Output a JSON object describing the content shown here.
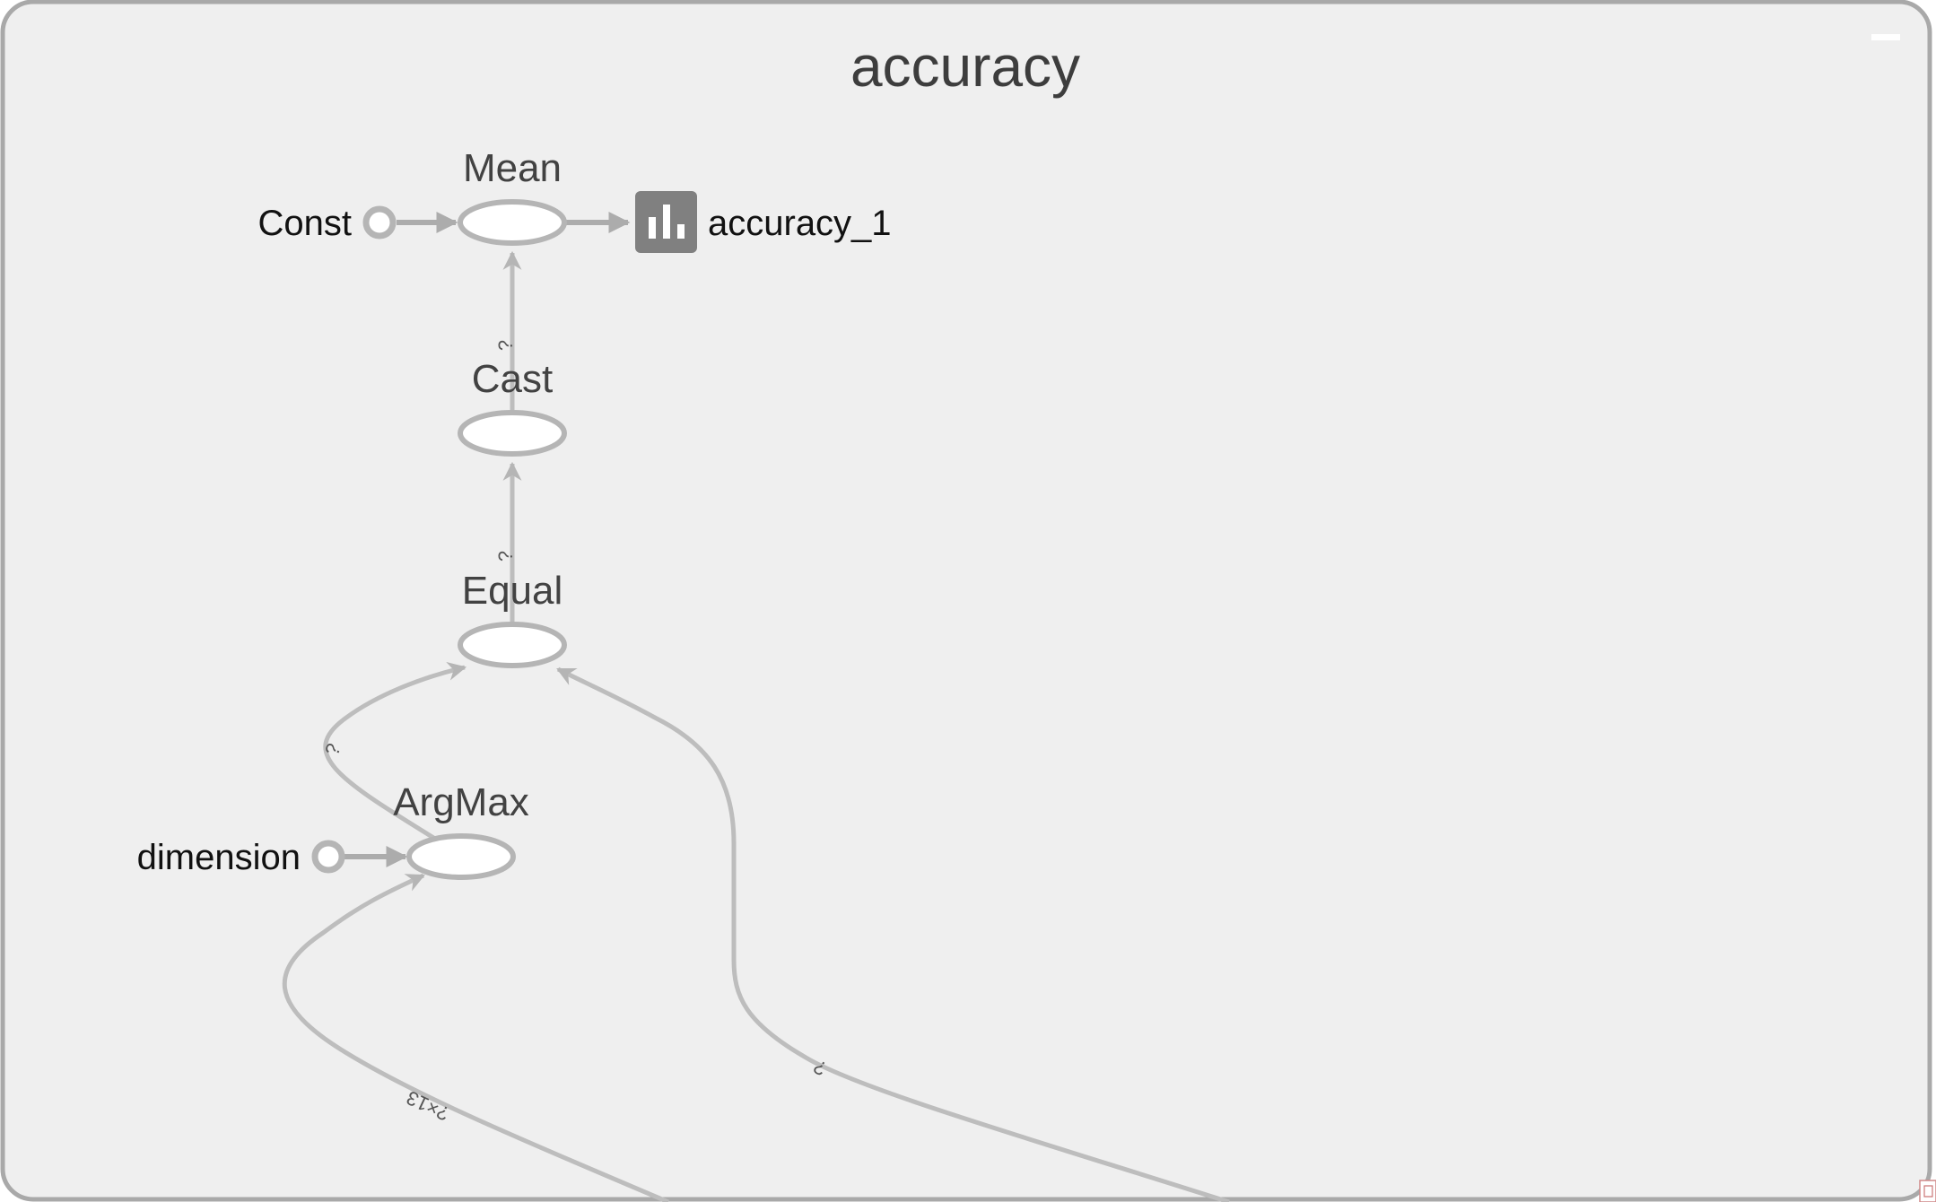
{
  "graph": {
    "title": "accuracy",
    "nodes": {
      "mean": "Mean",
      "cast": "Cast",
      "equal": "Equal",
      "argmax": "ArgMax"
    },
    "constants": {
      "const": "Const",
      "dimension": "dimension"
    },
    "summary": {
      "label": "accuracy_1",
      "icon": "bar-chart-icon"
    },
    "edge_labels": {
      "cast_to_mean": "?",
      "equal_to_cast": "?",
      "argmax_to_equal": "?",
      "input_to_argmax": "?×13",
      "input_to_equal": "?"
    },
    "colors": {
      "panel_bg": "#efefef",
      "panel_border": "#a9a9a9",
      "edge": "#bdbdbd",
      "summary_box": "#808080"
    }
  }
}
